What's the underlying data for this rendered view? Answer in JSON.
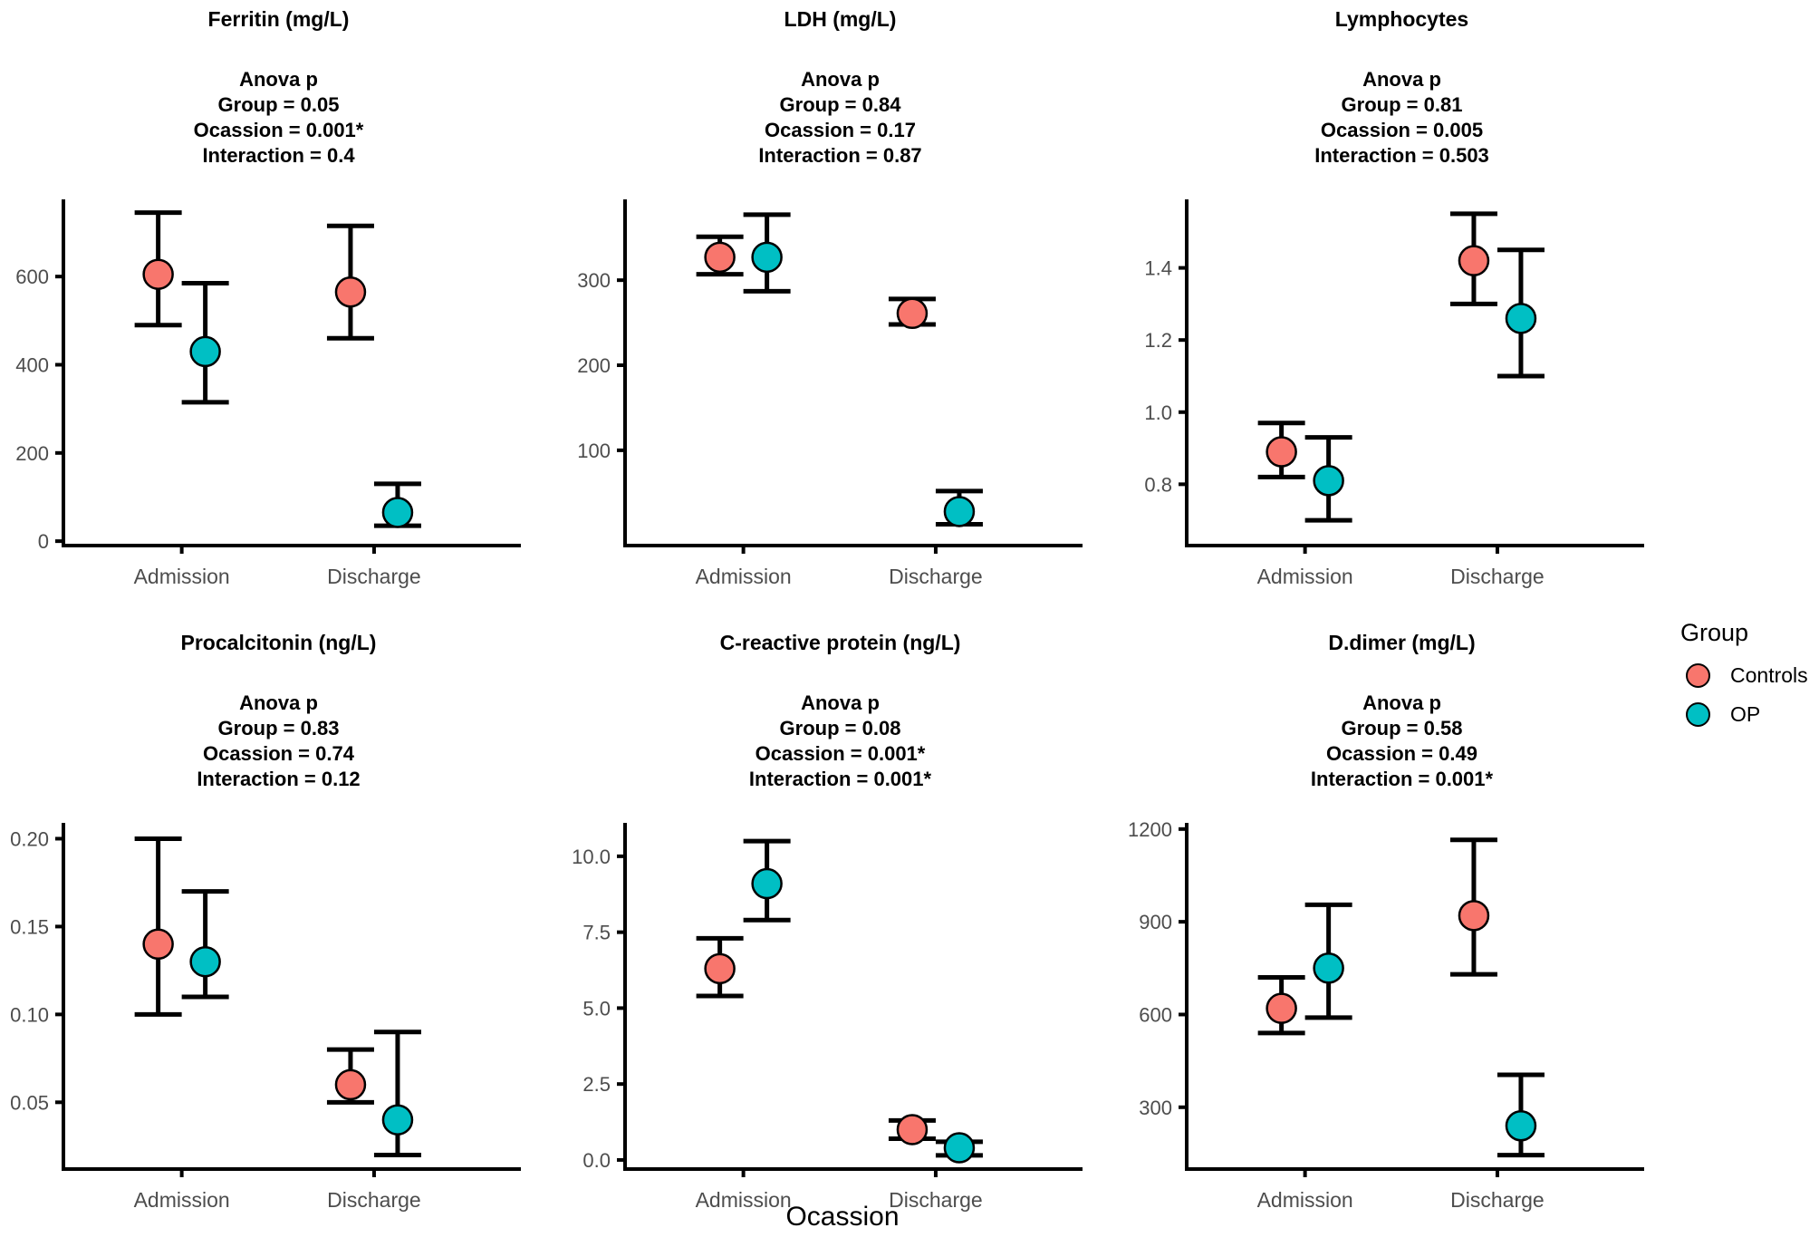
{
  "figure": {
    "x_axis_title": "Ocassion",
    "categories": [
      "Admission",
      "Discharge"
    ],
    "colors": {
      "controls": "#F8766D",
      "op": "#00BFC4",
      "axis_line": "#000000",
      "tick_text": "#4d4d4d",
      "background": "#ffffff"
    }
  },
  "legend": {
    "title": "Group",
    "items": [
      {
        "label": "Controls",
        "color": "#F8766D"
      },
      {
        "label": "OP",
        "color": "#00BFC4"
      }
    ]
  },
  "chart_data": [
    {
      "type": "scatter",
      "title": "Ferritin (mg/L)",
      "anova": [
        "Anova p",
        "Group = 0.05",
        "Ocassion = 0.001*",
        "Interaction = 0.4"
      ],
      "categories": [
        "Admission",
        "Discharge"
      ],
      "ylim": [
        -10,
        775
      ],
      "yticks": {
        "values": [
          0,
          200,
          400,
          600
        ],
        "labels": [
          "0",
          "200",
          "400",
          "600"
        ]
      },
      "series": [
        {
          "name": "Controls",
          "color": "#F8766D",
          "points": [
            {
              "category": "Admission",
              "mean": 605,
              "lo": 490,
              "hi": 745
            },
            {
              "category": "Discharge",
              "mean": 565,
              "lo": 460,
              "hi": 715
            }
          ]
        },
        {
          "name": "OP",
          "color": "#00BFC4",
          "points": [
            {
              "category": "Admission",
              "mean": 430,
              "lo": 315,
              "hi": 585
            },
            {
              "category": "Discharge",
              "mean": 65,
              "lo": 35,
              "hi": 130
            }
          ]
        }
      ]
    },
    {
      "type": "scatter",
      "title": "LDH (mg/L)",
      "anova": [
        "Anova p",
        "Group = 0.84",
        "Ocassion = 0.17",
        "Interaction = 0.87"
      ],
      "categories": [
        "Admission",
        "Discharge"
      ],
      "ylim": [
        -12,
        395
      ],
      "yticks": {
        "values": [
          100,
          200,
          300
        ],
        "labels": [
          "100",
          "200",
          "300"
        ]
      },
      "series": [
        {
          "name": "Controls",
          "color": "#F8766D",
          "points": [
            {
              "category": "Admission",
              "mean": 327,
              "lo": 307,
              "hi": 351
            },
            {
              "category": "Discharge",
              "mean": 261,
              "lo": 248,
              "hi": 278
            }
          ]
        },
        {
          "name": "OP",
          "color": "#00BFC4",
          "points": [
            {
              "category": "Admission",
              "mean": 327,
              "lo": 287,
              "hi": 377
            },
            {
              "category": "Discharge",
              "mean": 28,
              "lo": 13,
              "hi": 52
            }
          ]
        }
      ]
    },
    {
      "type": "scatter",
      "title": "Lymphocytes",
      "anova": [
        "Anova p",
        "Group = 0.81",
        "Ocassion = 0.005",
        "Interaction = 0.503"
      ],
      "categories": [
        "Admission",
        "Discharge"
      ],
      "ylim": [
        0.63,
        1.59
      ],
      "yticks": {
        "values": [
          0.8,
          1.0,
          1.2,
          1.4
        ],
        "labels": [
          "0.8",
          "1.0",
          "1.2",
          "1.4"
        ]
      },
      "series": [
        {
          "name": "Controls",
          "color": "#F8766D",
          "points": [
            {
              "category": "Admission",
              "mean": 0.89,
              "lo": 0.82,
              "hi": 0.97
            },
            {
              "category": "Discharge",
              "mean": 1.42,
              "lo": 1.3,
              "hi": 1.55
            }
          ]
        },
        {
          "name": "OP",
          "color": "#00BFC4",
          "points": [
            {
              "category": "Admission",
              "mean": 0.81,
              "lo": 0.7,
              "hi": 0.93
            },
            {
              "category": "Discharge",
              "mean": 1.26,
              "lo": 1.1,
              "hi": 1.45
            }
          ]
        }
      ]
    },
    {
      "type": "scatter",
      "title": "Procalcitonin (ng/L)",
      "anova": [
        "Anova p",
        "Group = 0.83",
        "Ocassion = 0.74",
        "Interaction = 0.12"
      ],
      "categories": [
        "Admission",
        "Discharge"
      ],
      "ylim": [
        0.012,
        0.209
      ],
      "yticks": {
        "values": [
          0.05,
          0.1,
          0.15,
          0.2
        ],
        "labels": [
          "0.05",
          "0.10",
          "0.15",
          "0.20"
        ]
      },
      "series": [
        {
          "name": "Controls",
          "color": "#F8766D",
          "points": [
            {
              "category": "Admission",
              "mean": 0.14,
              "lo": 0.1,
              "hi": 0.2
            },
            {
              "category": "Discharge",
              "mean": 0.06,
              "lo": 0.05,
              "hi": 0.08
            }
          ]
        },
        {
          "name": "OP",
          "color": "#00BFC4",
          "points": [
            {
              "category": "Admission",
              "mean": 0.13,
              "lo": 0.11,
              "hi": 0.17
            },
            {
              "category": "Discharge",
              "mean": 0.04,
              "lo": 0.02,
              "hi": 0.09
            }
          ]
        }
      ]
    },
    {
      "type": "scatter",
      "title": "C-reactive protein (ng/L)",
      "anova": [
        "Anova p",
        "Group = 0.08",
        "Ocassion = 0.001*",
        "Interaction = 0.001*"
      ],
      "categories": [
        "Admission",
        "Discharge"
      ],
      "ylim": [
        -0.3,
        11.1
      ],
      "yticks": {
        "values": [
          0.0,
          2.5,
          5.0,
          7.5,
          10.0
        ],
        "labels": [
          "0.0",
          "2.5",
          "5.0",
          "7.5",
          "10.0"
        ]
      },
      "series": [
        {
          "name": "Controls",
          "color": "#F8766D",
          "points": [
            {
              "category": "Admission",
              "mean": 6.3,
              "lo": 5.4,
              "hi": 7.3
            },
            {
              "category": "Discharge",
              "mean": 1.0,
              "lo": 0.7,
              "hi": 1.3
            }
          ]
        },
        {
          "name": "OP",
          "color": "#00BFC4",
          "points": [
            {
              "category": "Admission",
              "mean": 9.1,
              "lo": 7.9,
              "hi": 10.5
            },
            {
              "category": "Discharge",
              "mean": 0.4,
              "lo": 0.15,
              "hi": 0.6
            }
          ]
        }
      ]
    },
    {
      "type": "scatter",
      "title": "D.dimer (mg/L)",
      "anova": [
        "Anova p",
        "Group = 0.58",
        "Ocassion = 0.49",
        "Interaction = 0.001*"
      ],
      "categories": [
        "Admission",
        "Discharge"
      ],
      "ylim": [
        100,
        1220
      ],
      "yticks": {
        "values": [
          300,
          600,
          900,
          1200
        ],
        "labels": [
          "300",
          "600",
          "900",
          "1200"
        ]
      },
      "series": [
        {
          "name": "Controls",
          "color": "#F8766D",
          "points": [
            {
              "category": "Admission",
              "mean": 620,
              "lo": 540,
              "hi": 720
            },
            {
              "category": "Discharge",
              "mean": 920,
              "lo": 730,
              "hi": 1165
            }
          ]
        },
        {
          "name": "OP",
          "color": "#00BFC4",
          "points": [
            {
              "category": "Admission",
              "mean": 750,
              "lo": 590,
              "hi": 955
            },
            {
              "category": "Discharge",
              "mean": 240,
              "lo": 145,
              "hi": 405
            }
          ]
        }
      ]
    }
  ]
}
